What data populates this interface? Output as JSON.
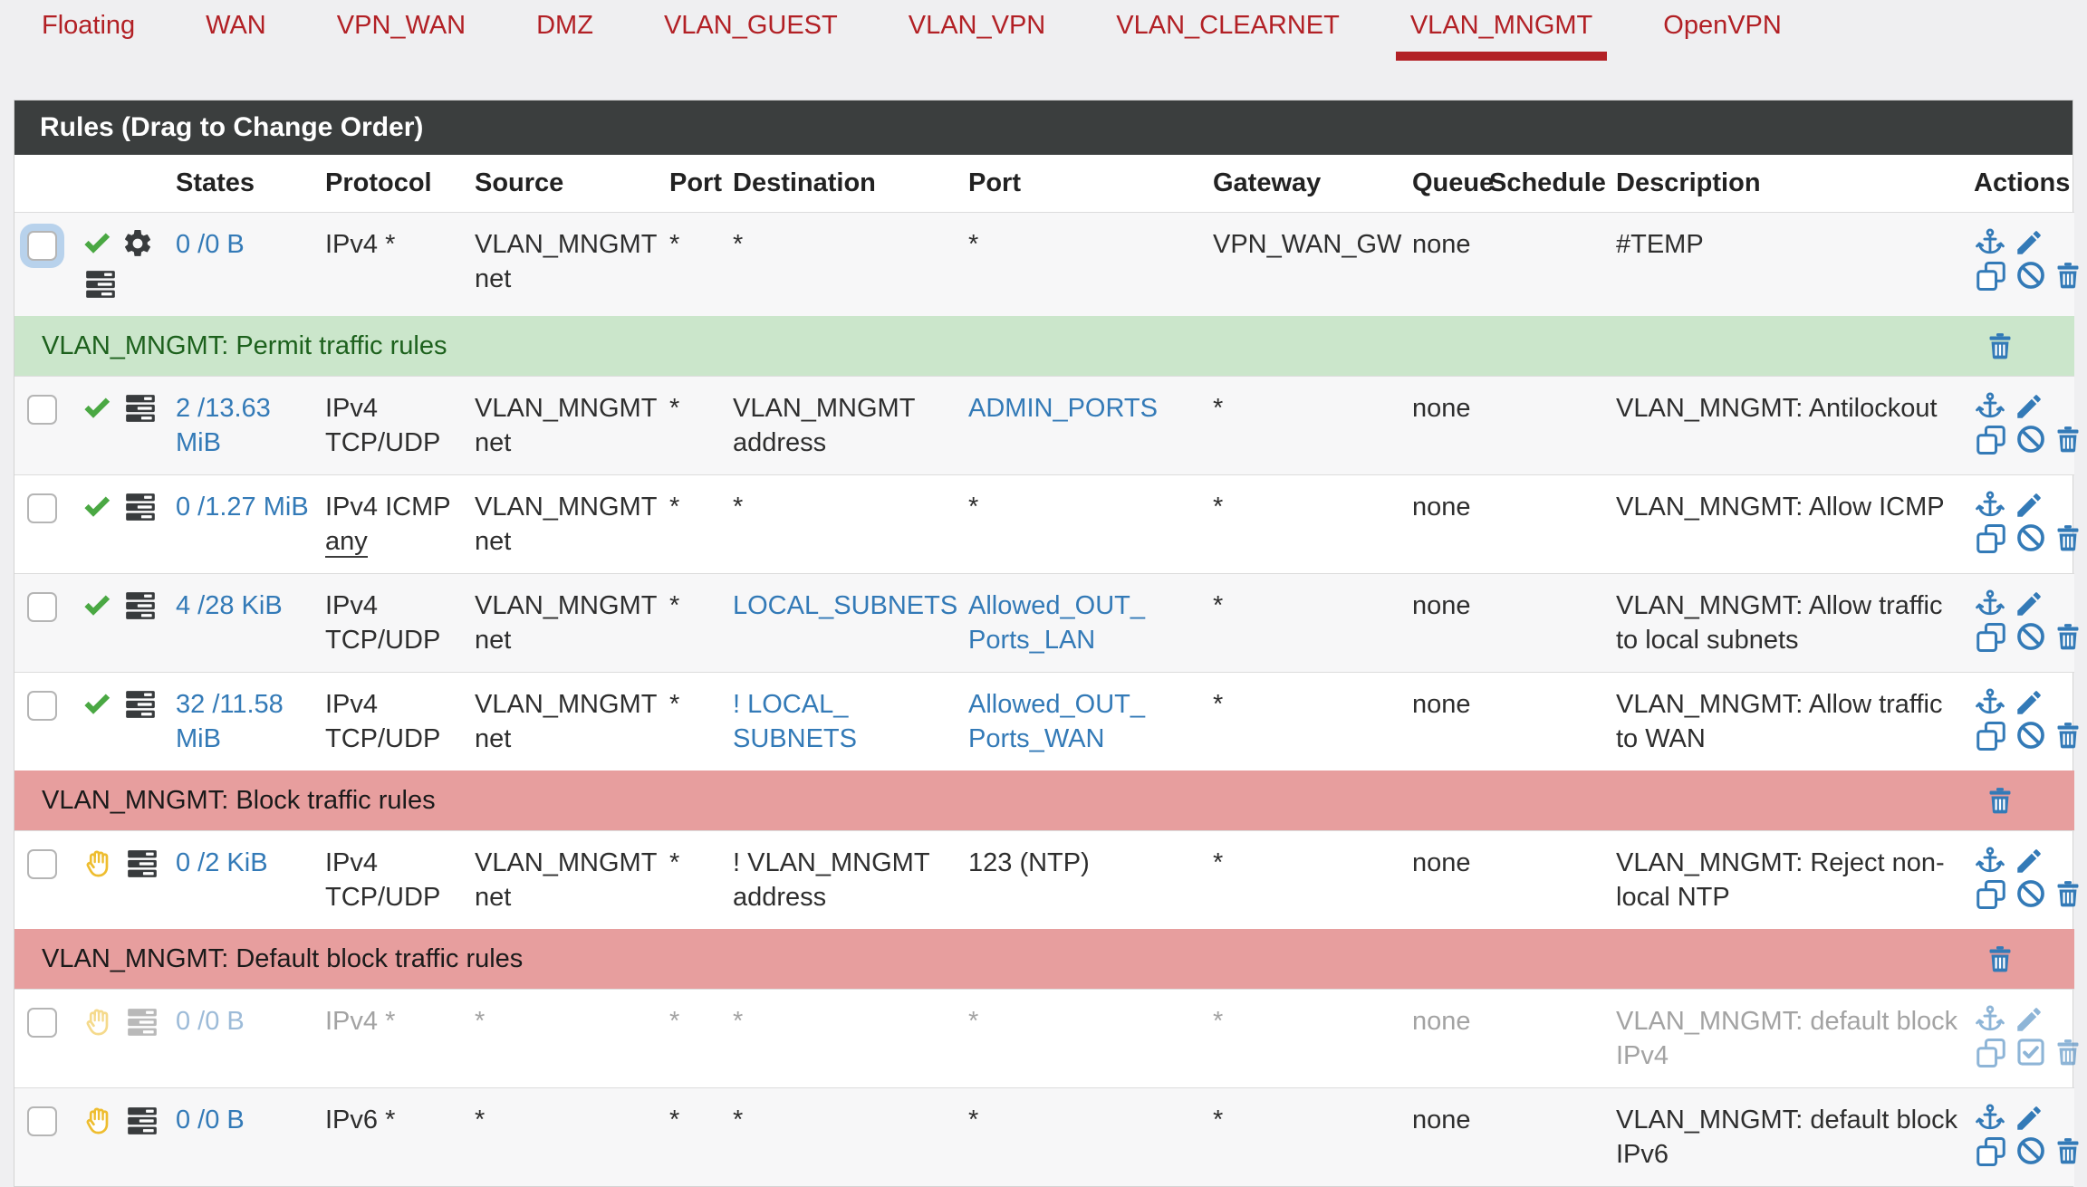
{
  "colors": {
    "accent_red": "#b22025",
    "link_blue": "#337ab7",
    "pass_green": "#4aa843",
    "reject_gold": "#eebd2f",
    "separator_green": "#cbe6cb",
    "separator_red": "#e79e9e",
    "header_bar": "#3b3e3e"
  },
  "tabs": [
    {
      "label": "Floating",
      "active": false
    },
    {
      "label": "WAN",
      "active": false
    },
    {
      "label": "VPN_WAN",
      "active": false
    },
    {
      "label": "DMZ",
      "active": false
    },
    {
      "label": "VLAN_GUEST",
      "active": false
    },
    {
      "label": "VLAN_VPN",
      "active": false
    },
    {
      "label": "VLAN_CLEARNET",
      "active": false
    },
    {
      "label": "VLAN_MNGMT",
      "active": true
    },
    {
      "label": "OpenVPN",
      "active": false
    }
  ],
  "panel": {
    "title": "Rules (Drag to Change Order)"
  },
  "table": {
    "columns": [
      "",
      "",
      "States",
      "Protocol",
      "Source",
      "Port",
      "Destination",
      "Port",
      "Gateway",
      "Queue",
      "Schedule",
      "Description",
      "Actions"
    ],
    "rows": [
      {
        "type": "rule",
        "status": "pass",
        "gear": true,
        "checkbox_focused": true,
        "stripe": true,
        "states": "0 /0 B",
        "protocol": "IPv4 *",
        "source": "VLAN_MNGMT net",
        "src_port": "*",
        "destination": {
          "text": "*",
          "link": false
        },
        "dest_port": {
          "text": "*",
          "link": false
        },
        "gateway": "VPN_WAN_GW",
        "queue": "none",
        "schedule": "",
        "description": "#TEMP",
        "disabled": false,
        "actions": [
          "anchor",
          "edit",
          "copy",
          "ban",
          "trash"
        ]
      },
      {
        "type": "separator",
        "kind": "permit",
        "label": "VLAN_MNGMT: Permit traffic rules"
      },
      {
        "type": "rule",
        "status": "pass",
        "gear": false,
        "stripe": true,
        "states": "2 /13.63 MiB",
        "protocol": "IPv4 TCP/UDP",
        "source": "VLAN_MNGMT net",
        "src_port": "*",
        "destination": {
          "text": "VLAN_MNGMT address",
          "link": false
        },
        "dest_port": {
          "text": "ADMIN_PORTS",
          "link": true
        },
        "gateway": "*",
        "queue": "none",
        "schedule": "",
        "description": "VLAN_MNGMT: Antilockout",
        "disabled": false,
        "actions": [
          "anchor",
          "edit",
          "copy",
          "ban",
          "trash"
        ]
      },
      {
        "type": "rule",
        "status": "pass",
        "gear": false,
        "stripe": false,
        "states": "0 /1.27 MiB",
        "protocol": "IPv4 ICMP",
        "protocol_sub": "any",
        "source": "VLAN_MNGMT net",
        "src_port": "*",
        "destination": {
          "text": "*",
          "link": false
        },
        "dest_port": {
          "text": "*",
          "link": false
        },
        "gateway": "*",
        "queue": "none",
        "schedule": "",
        "description": "VLAN_MNGMT: Allow ICMP",
        "disabled": false,
        "actions": [
          "anchor",
          "edit",
          "copy",
          "ban",
          "trash"
        ]
      },
      {
        "type": "rule",
        "status": "pass",
        "gear": false,
        "stripe": true,
        "states": "4 /28 KiB",
        "protocol": "IPv4 TCP/UDP",
        "source": "VLAN_MNGMT net",
        "src_port": "*",
        "destination": {
          "text": "LOCAL_SUBNETS",
          "link": true
        },
        "dest_port": {
          "text": "Allowed_OUT_ Ports_LAN",
          "link": true
        },
        "gateway": "*",
        "queue": "none",
        "schedule": "",
        "description": "VLAN_MNGMT: Allow traffic to local subnets",
        "disabled": false,
        "actions": [
          "anchor",
          "edit",
          "copy",
          "ban",
          "trash"
        ]
      },
      {
        "type": "rule",
        "status": "pass",
        "gear": false,
        "stripe": false,
        "states": "32 /11.58 MiB",
        "protocol": "IPv4 TCP/UDP",
        "source": "VLAN_MNGMT net",
        "src_port": "*",
        "destination": {
          "text": "! LOCAL_ SUBNETS",
          "link": true
        },
        "dest_port": {
          "text": "Allowed_OUT_ Ports_WAN",
          "link": true
        },
        "gateway": "*",
        "queue": "none",
        "schedule": "",
        "description": "VLAN_MNGMT: Allow traffic to WAN",
        "disabled": false,
        "actions": [
          "anchor",
          "edit",
          "copy",
          "ban",
          "trash"
        ]
      },
      {
        "type": "separator",
        "kind": "block",
        "label": "VLAN_MNGMT: Block traffic rules"
      },
      {
        "type": "rule",
        "status": "reject",
        "gear": false,
        "stripe": false,
        "states": "0 /2 KiB",
        "protocol": "IPv4 TCP/UDP",
        "source": "VLAN_MNGMT net",
        "src_port": "*",
        "destination": {
          "text": "! VLAN_MNGMT address",
          "link": false
        },
        "dest_port": {
          "text": "123 (NTP)",
          "link": false
        },
        "gateway": "*",
        "queue": "none",
        "schedule": "",
        "description": "VLAN_MNGMT: Reject non-local NTP",
        "disabled": false,
        "actions": [
          "anchor",
          "edit",
          "copy",
          "ban",
          "trash"
        ]
      },
      {
        "type": "separator",
        "kind": "block",
        "label": "VLAN_MNGMT: Default block traffic rules"
      },
      {
        "type": "rule",
        "status": "reject",
        "gear": false,
        "stripe": false,
        "states": "0 /0 B",
        "protocol": "IPv4 *",
        "source": "*",
        "src_port": "*",
        "destination": {
          "text": "*",
          "link": false
        },
        "dest_port": {
          "text": "*",
          "link": false
        },
        "gateway": "*",
        "queue": "none",
        "schedule": "",
        "description": "VLAN_MNGMT: default block IPv4",
        "disabled": true,
        "actions": [
          "anchor",
          "edit",
          "copy",
          "enable",
          "trash"
        ]
      },
      {
        "type": "rule",
        "status": "reject",
        "gear": false,
        "stripe": true,
        "states": "0 /0 B",
        "protocol": "IPv6 *",
        "source": "*",
        "src_port": "*",
        "destination": {
          "text": "*",
          "link": false
        },
        "dest_port": {
          "text": "*",
          "link": false
        },
        "gateway": "*",
        "queue": "none",
        "schedule": "",
        "description": "VLAN_MNGMT: default block IPv6",
        "disabled": false,
        "actions": [
          "anchor",
          "edit",
          "copy",
          "ban",
          "trash"
        ]
      }
    ]
  }
}
